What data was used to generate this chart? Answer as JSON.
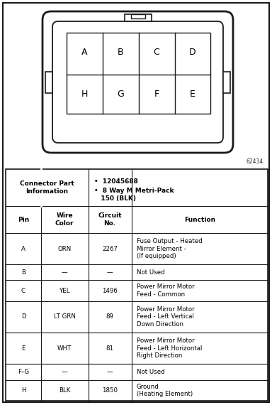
{
  "diagram_code": "62434",
  "pin_labels_top": [
    "A",
    "B",
    "C",
    "D"
  ],
  "pin_labels_bot": [
    "H",
    "G",
    "F",
    "E"
  ],
  "table_headers": [
    "Pin",
    "Wire\nColor",
    "Circuit\nNo.",
    "Function"
  ],
  "table_rows": [
    [
      "A",
      "ORN",
      "2267",
      "Fuse Output - Heated\nMirror Element -\n(If equipped)"
    ],
    [
      "B",
      "—",
      "—",
      "Not Used"
    ],
    [
      "C",
      "YEL",
      "1496",
      "Power Mirror Motor\nFeed - Common"
    ],
    [
      "D",
      "LT GRN",
      "89",
      "Power Mirror Motor\nFeed - Left Vertical\nDown Direction"
    ],
    [
      "E",
      "WHT",
      "81",
      "Power Mirror Motor\nFeed - Left Horizontal\nRight Direction"
    ],
    [
      "F–G",
      "—",
      "—",
      "Not Used"
    ],
    [
      "H",
      "BLK",
      "1850",
      "Ground\n(Heating Element)"
    ]
  ],
  "font_size_table": 6.2,
  "font_size_header": 6.5,
  "font_size_pin": 9,
  "font_size_code": 5.5,
  "connector_part_label": "Connector Part\nInformation",
  "part_bullet1": "•  12045688",
  "part_bullet2": "•  8 Way M Metri-Pack\n   150 (BLK)"
}
